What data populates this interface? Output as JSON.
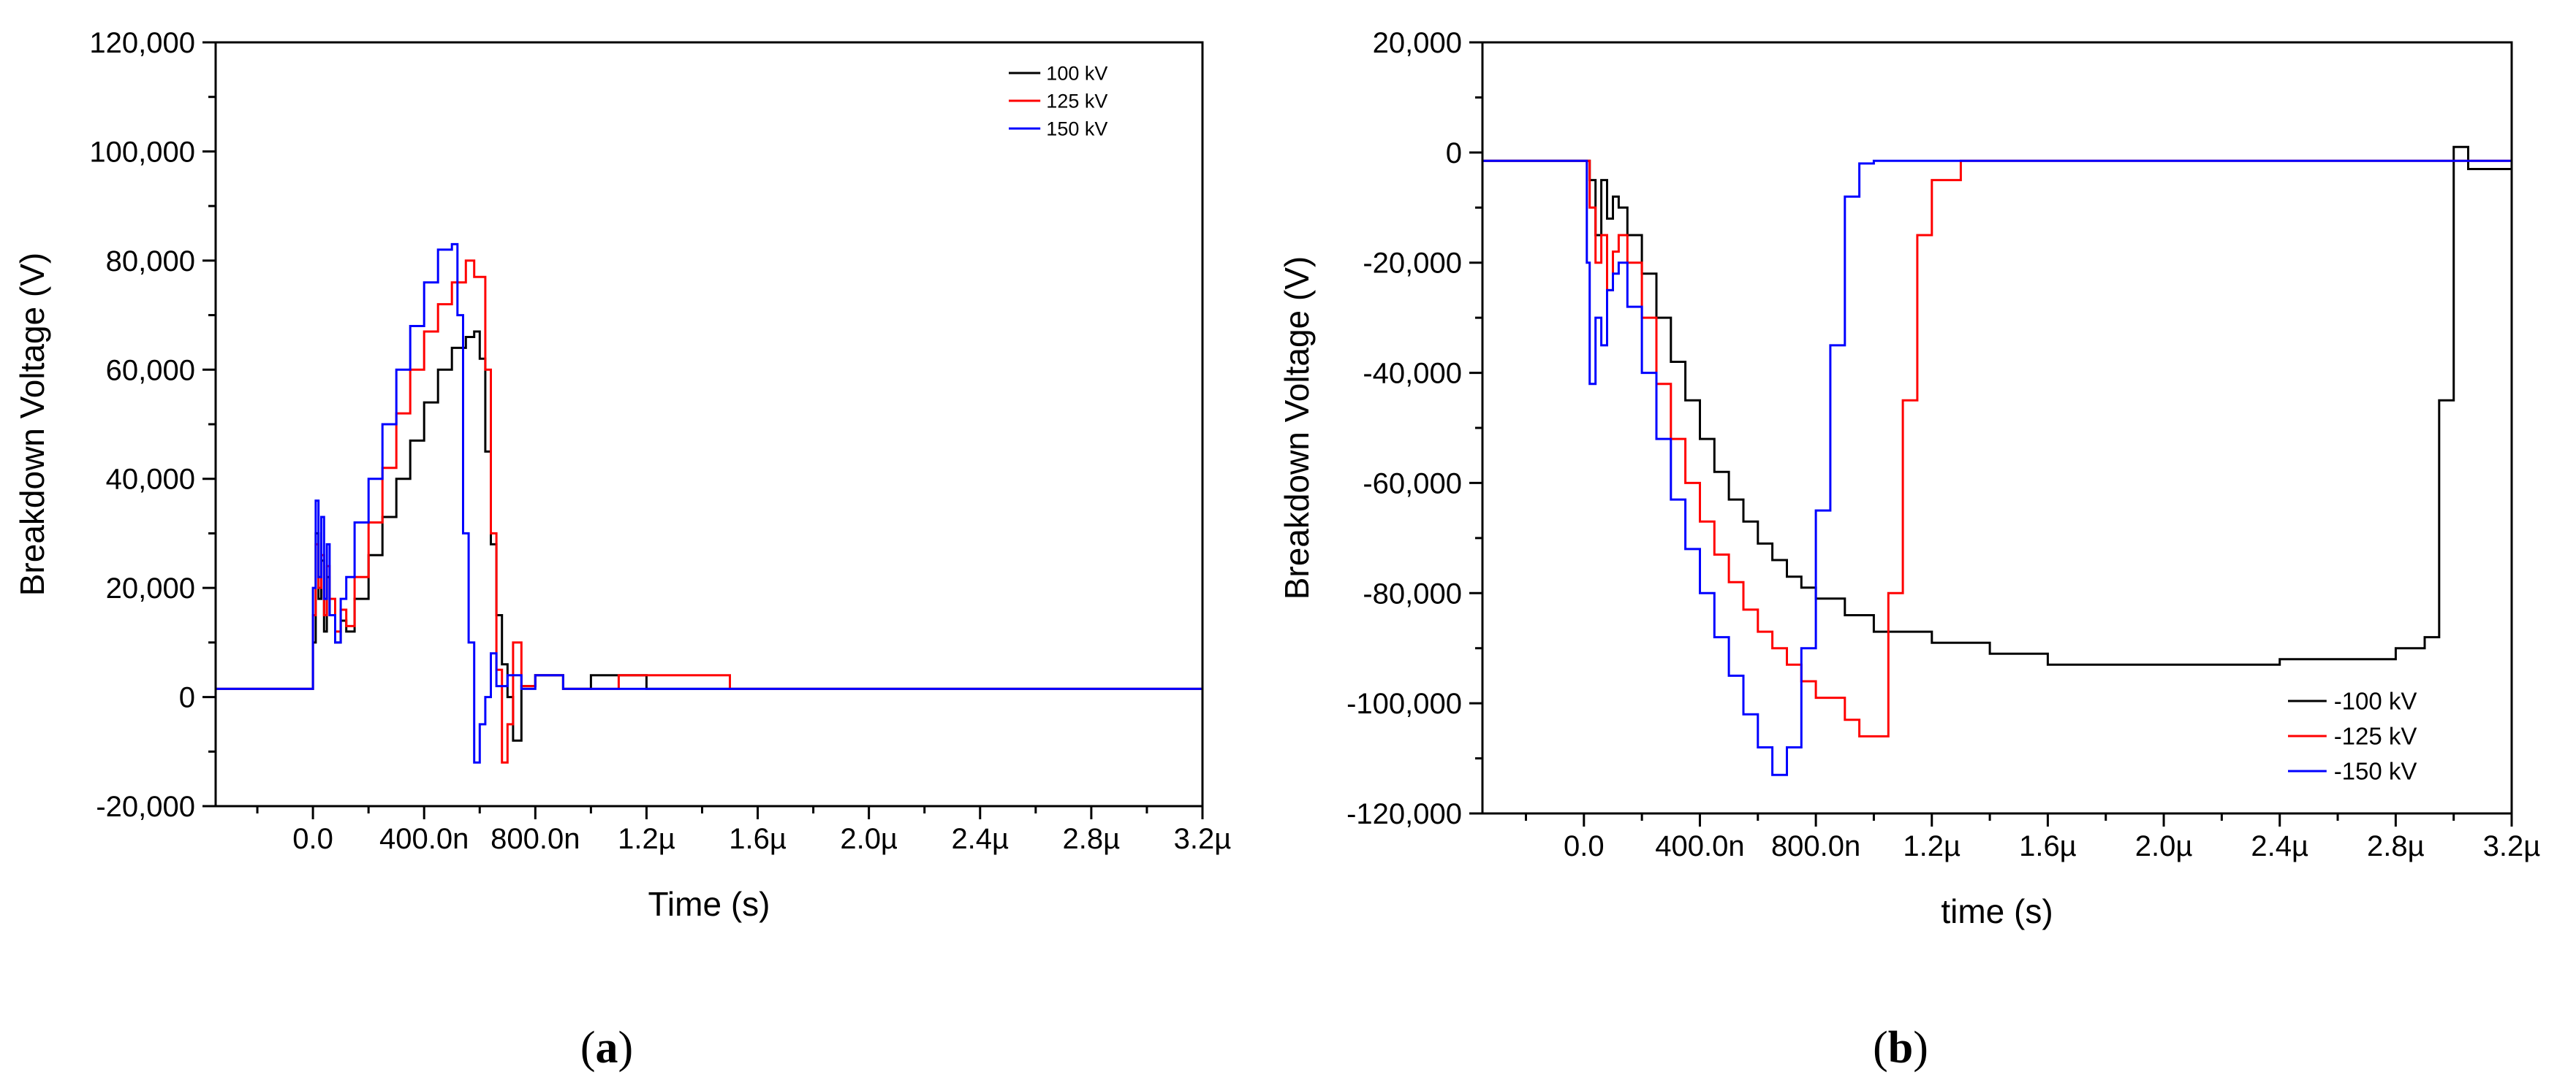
{
  "chart_data": [
    {
      "type": "line",
      "panel_label": "(a)",
      "panel_letter": "a",
      "title": "",
      "xlabel": "Time (s)",
      "ylabel": "Breakdown Voltage (V)",
      "xlim": [
        -3.5e-07,
        3.2e-06
      ],
      "ylim": [
        -20000,
        120000
      ],
      "xticks": [
        0,
        4e-07,
        8e-07,
        1.2e-06,
        1.6e-06,
        2e-06,
        2.4e-06,
        2.8e-06,
        3.2e-06
      ],
      "xtick_labels": [
        "0.0",
        "400.0n",
        "800.0n",
        "1.2µ",
        "1.6µ",
        "2.0µ",
        "2.4µ",
        "2.8µ",
        "3.2µ"
      ],
      "yticks": [
        -20000,
        0,
        20000,
        40000,
        60000,
        80000,
        100000,
        120000
      ],
      "ytick_labels": [
        "-20,000",
        "0",
        "20,000",
        "40,000",
        "60,000",
        "80,000",
        "100,000",
        "120,000"
      ],
      "grid": false,
      "legend_position": "top-right",
      "series": [
        {
          "name": "100 kV",
          "color": "#000000",
          "x": [
            -3.5e-07,
            -2e-08,
            0,
            1e-08,
            2e-08,
            3e-08,
            4e-08,
            5e-08,
            6e-08,
            8e-08,
            1e-07,
            1.2e-07,
            1.5e-07,
            2e-07,
            2.5e-07,
            3e-07,
            3.5e-07,
            4e-07,
            4.5e-07,
            5e-07,
            5.5e-07,
            5.8e-07,
            6e-07,
            6.2e-07,
            6.4e-07,
            6.6e-07,
            6.8e-07,
            7e-07,
            7.2e-07,
            7.5e-07,
            8e-07,
            9e-07,
            1e-06,
            1.2e-06,
            3.2e-06
          ],
          "y": [
            1500,
            1500,
            10000,
            30000,
            18000,
            25000,
            12000,
            22000,
            15000,
            10000,
            14000,
            12000,
            18000,
            26000,
            33000,
            40000,
            47000,
            54000,
            60000,
            64000,
            66000,
            67000,
            62000,
            45000,
            28000,
            15000,
            6000,
            0,
            -8000,
            2000,
            4000,
            1500,
            4000,
            1500,
            1500
          ]
        },
        {
          "name": "125 kV",
          "color": "#ff0000",
          "x": [
            -3.5e-07,
            -2e-08,
            0,
            1e-08,
            2e-08,
            3e-08,
            4e-08,
            5e-08,
            6e-08,
            8e-08,
            1e-07,
            1.2e-07,
            1.5e-07,
            2e-07,
            2.5e-07,
            3e-07,
            3.5e-07,
            4e-07,
            4.5e-07,
            5e-07,
            5.5e-07,
            5.8e-07,
            6e-07,
            6.2e-07,
            6.4e-07,
            6.6e-07,
            6.8e-07,
            7e-07,
            7.2e-07,
            7.5e-07,
            8e-07,
            9e-07,
            1.1e-06,
            1.5e-06,
            2.87e-06,
            3.2e-06
          ],
          "y": [
            1500,
            1500,
            15000,
            28000,
            20000,
            26000,
            15000,
            24000,
            18000,
            12000,
            16000,
            13000,
            22000,
            32000,
            42000,
            52000,
            60000,
            67000,
            72000,
            76000,
            80000,
            77000,
            77000,
            60000,
            30000,
            5000,
            -12000,
            -5000,
            10000,
            2000,
            4000,
            1500,
            4000,
            1500,
            1500,
            1500
          ]
        },
        {
          "name": "150 kV",
          "color": "#0000ff",
          "x": [
            -3.5e-07,
            -2e-08,
            0,
            1e-08,
            2e-08,
            3e-08,
            4e-08,
            5e-08,
            6e-08,
            8e-08,
            1e-07,
            1.2e-07,
            1.5e-07,
            2e-07,
            2.5e-07,
            3e-07,
            3.5e-07,
            4e-07,
            4.5e-07,
            5e-07,
            5.2e-07,
            5.4e-07,
            5.6e-07,
            5.8e-07,
            6e-07,
            6.2e-07,
            6.4e-07,
            6.6e-07,
            7e-07,
            7.5e-07,
            8e-07,
            9e-07,
            1e-06,
            2e-06,
            3.05e-06,
            3.2e-06
          ],
          "y": [
            1500,
            1500,
            20000,
            36000,
            22000,
            33000,
            18000,
            28000,
            15000,
            10000,
            18000,
            22000,
            32000,
            40000,
            50000,
            60000,
            68000,
            76000,
            82000,
            83000,
            70000,
            30000,
            10000,
            -12000,
            -5000,
            0,
            8000,
            2000,
            4000,
            1500,
            4000,
            1500,
            1500,
            1500,
            1500,
            1500
          ]
        }
      ]
    },
    {
      "type": "line",
      "panel_label": "(b)",
      "panel_letter": "b",
      "title": "",
      "xlabel": "time (s)",
      "ylabel": "Breakdown Voltage (V)",
      "xlim": [
        -3.5e-07,
        3.2e-06
      ],
      "ylim": [
        -120000,
        20000
      ],
      "xticks": [
        0,
        4e-07,
        8e-07,
        1.2e-06,
        1.6e-06,
        2e-06,
        2.4e-06,
        2.8e-06,
        3.2e-06
      ],
      "xtick_labels": [
        "0.0",
        "400.0n",
        "800.0n",
        "1.2µ",
        "1.6µ",
        "2.0µ",
        "2.4µ",
        "2.8µ",
        "3.2µ"
      ],
      "yticks": [
        -120000,
        -100000,
        -80000,
        -60000,
        -40000,
        -20000,
        0,
        20000
      ],
      "ytick_labels": [
        "-120,000",
        "-100,000",
        "-80,000",
        "-60,000",
        "-40,000",
        "-20,000",
        "0",
        "20,000"
      ],
      "grid": false,
      "legend_position": "bottom-right",
      "series": [
        {
          "name": "-100 kV",
          "color": "#000000",
          "x": [
            -3.5e-07,
            0,
            2e-08,
            4e-08,
            6e-08,
            8e-08,
            1e-07,
            1.2e-07,
            1.5e-07,
            2e-07,
            2.5e-07,
            3e-07,
            3.5e-07,
            4e-07,
            4.5e-07,
            5e-07,
            5.5e-07,
            6e-07,
            6.5e-07,
            7e-07,
            7.5e-07,
            8e-07,
            9e-07,
            1e-06,
            1.2e-06,
            1.4e-06,
            1.6e-06,
            2e-06,
            2.4e-06,
            2.8e-06,
            2.9e-06,
            2.95e-06,
            3e-06,
            3.05e-06,
            3.2e-06
          ],
          "y": [
            -1500,
            -1500,
            -5000,
            -15000,
            -5000,
            -12000,
            -8000,
            -10000,
            -15000,
            -22000,
            -30000,
            -38000,
            -45000,
            -52000,
            -58000,
            -63000,
            -67000,
            -71000,
            -74000,
            -77000,
            -79000,
            -81000,
            -84000,
            -87000,
            -89000,
            -91000,
            -93000,
            -93000,
            -92000,
            -90000,
            -88000,
            -45000,
            1000,
            -3000,
            -3000
          ]
        },
        {
          "name": "-125 kV",
          "color": "#ff0000",
          "x": [
            -3.5e-07,
            0,
            2e-08,
            4e-08,
            6e-08,
            8e-08,
            1e-07,
            1.2e-07,
            1.5e-07,
            2e-07,
            2.5e-07,
            3e-07,
            3.5e-07,
            4e-07,
            4.5e-07,
            5e-07,
            5.5e-07,
            6e-07,
            6.5e-07,
            7e-07,
            7.5e-07,
            8e-07,
            9e-07,
            9.5e-07,
            1e-06,
            1.05e-06,
            1.1e-06,
            1.15e-06,
            1.2e-06,
            1.3e-06,
            3.2e-06
          ],
          "y": [
            -1500,
            -1500,
            -10000,
            -20000,
            -15000,
            -25000,
            -18000,
            -15000,
            -20000,
            -30000,
            -42000,
            -52000,
            -60000,
            -67000,
            -73000,
            -78000,
            -83000,
            -87000,
            -90000,
            -93000,
            -96000,
            -99000,
            -103000,
            -106000,
            -106000,
            -80000,
            -45000,
            -15000,
            -5000,
            -1500,
            -1500
          ]
        },
        {
          "name": "-150 kV",
          "color": "#0000ff",
          "x": [
            -3.5e-07,
            0,
            1e-08,
            2e-08,
            4e-08,
            6e-08,
            8e-08,
            1e-07,
            1.2e-07,
            1.5e-07,
            2e-07,
            2.5e-07,
            3e-07,
            3.5e-07,
            4e-07,
            4.5e-07,
            5e-07,
            5.5e-07,
            6e-07,
            6.5e-07,
            7e-07,
            7.5e-07,
            8e-07,
            8.5e-07,
            9e-07,
            9.5e-07,
            1e-06,
            3.2e-06
          ],
          "y": [
            -1500,
            -1500,
            -20000,
            -42000,
            -30000,
            -35000,
            -25000,
            -22000,
            -20000,
            -28000,
            -40000,
            -52000,
            -63000,
            -72000,
            -80000,
            -88000,
            -95000,
            -102000,
            -108000,
            -113000,
            -108000,
            -90000,
            -65000,
            -35000,
            -8000,
            -2000,
            -1500,
            -1500
          ]
        }
      ]
    }
  ]
}
